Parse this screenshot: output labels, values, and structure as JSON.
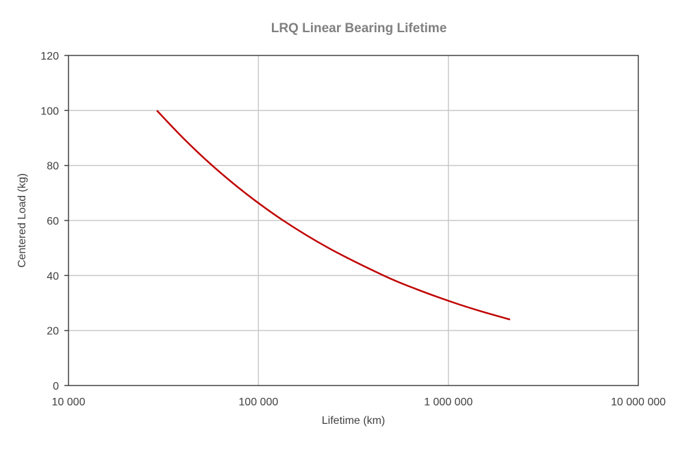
{
  "chart_data": {
    "type": "line",
    "title": "LRQ Linear Bearing Lifetime",
    "xlabel": "Lifetime (km)",
    "ylabel": "Centered Load (kg)",
    "x_scale": "log",
    "xlim": [
      10000,
      10000000
    ],
    "ylim": [
      0,
      120
    ],
    "x_ticks": [
      10000,
      100000,
      1000000,
      10000000
    ],
    "x_tick_labels": [
      "10 000",
      "100 000",
      "1 000 000",
      "10 000 000"
    ],
    "y_ticks": [
      0,
      20,
      40,
      60,
      80,
      100,
      120
    ],
    "y_tick_labels": [
      "0",
      "20",
      "40",
      "60",
      "80",
      "100",
      "120"
    ],
    "grid": true,
    "legend": "none",
    "series": [
      {
        "color": "#c00000",
        "x": [
          29200,
          40100,
          57100,
          85200,
          135000,
          234000,
          456000,
          681000,
          1082000,
          1484000,
          2113000
        ],
        "y": [
          100,
          90,
          80,
          70,
          60,
          50,
          40,
          35,
          30,
          27,
          24
        ]
      }
    ]
  }
}
